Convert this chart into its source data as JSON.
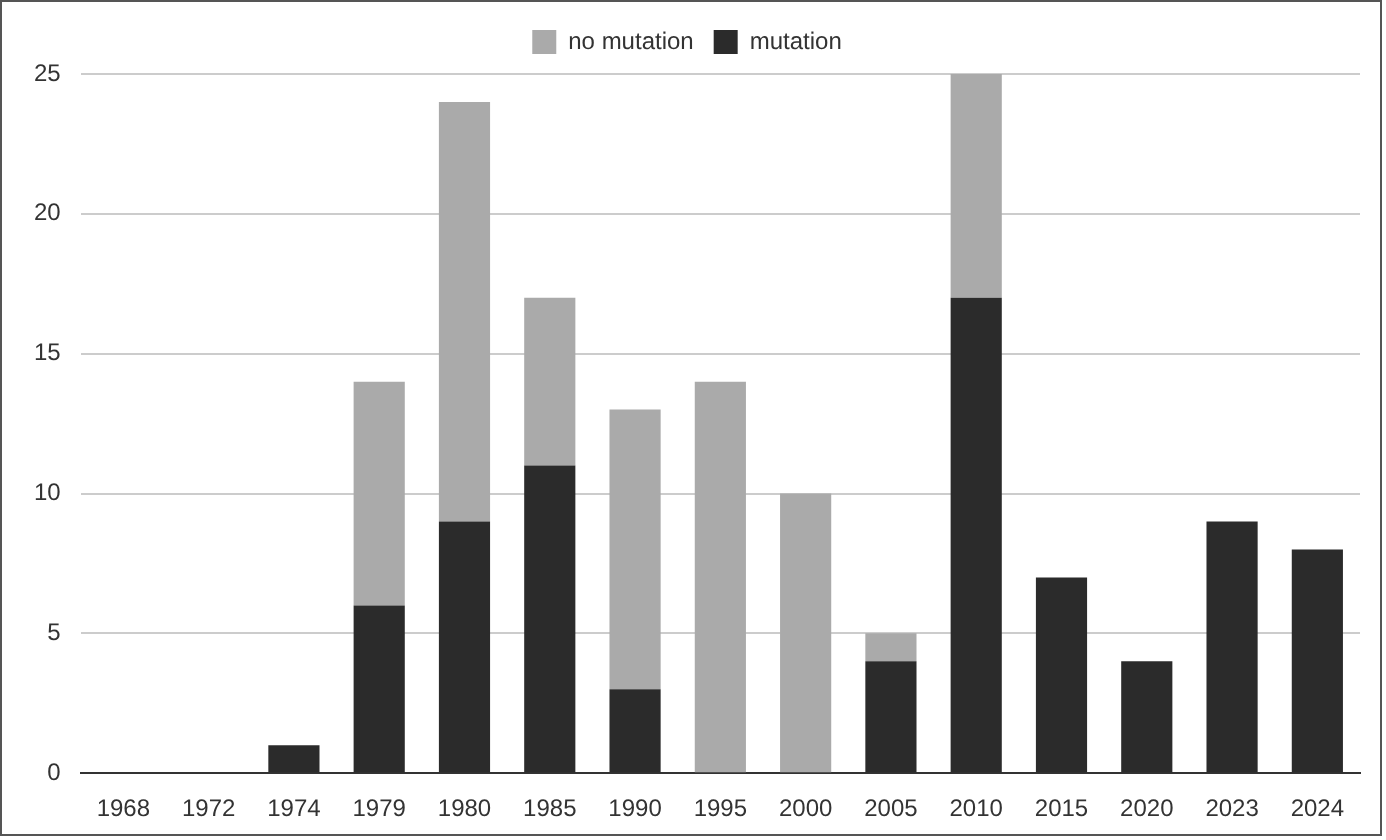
{
  "chart_data": {
    "type": "bar",
    "stacked": true,
    "categories": [
      "1968",
      "1972",
      "1974",
      "1979",
      "1980",
      "1985",
      "1990",
      "1995",
      "2000",
      "2005",
      "2010",
      "2015",
      "2020",
      "2023",
      "2024"
    ],
    "series": [
      {
        "name": "mutation",
        "color": "#2b2b2b",
        "values": [
          0,
          0,
          1,
          6,
          9,
          11,
          3,
          0,
          0,
          4,
          17,
          7,
          4,
          9,
          8
        ]
      },
      {
        "name": "no mutation",
        "color": "#aaaaaa",
        "values": [
          0,
          0,
          0,
          8,
          15,
          6,
          10,
          14,
          10,
          1,
          8,
          0,
          0,
          0,
          0
        ]
      }
    ],
    "ylim": [
      0,
      25
    ],
    "yticks": [
      0,
      5,
      10,
      15,
      20,
      25
    ],
    "grid": "y",
    "legend": "top"
  }
}
